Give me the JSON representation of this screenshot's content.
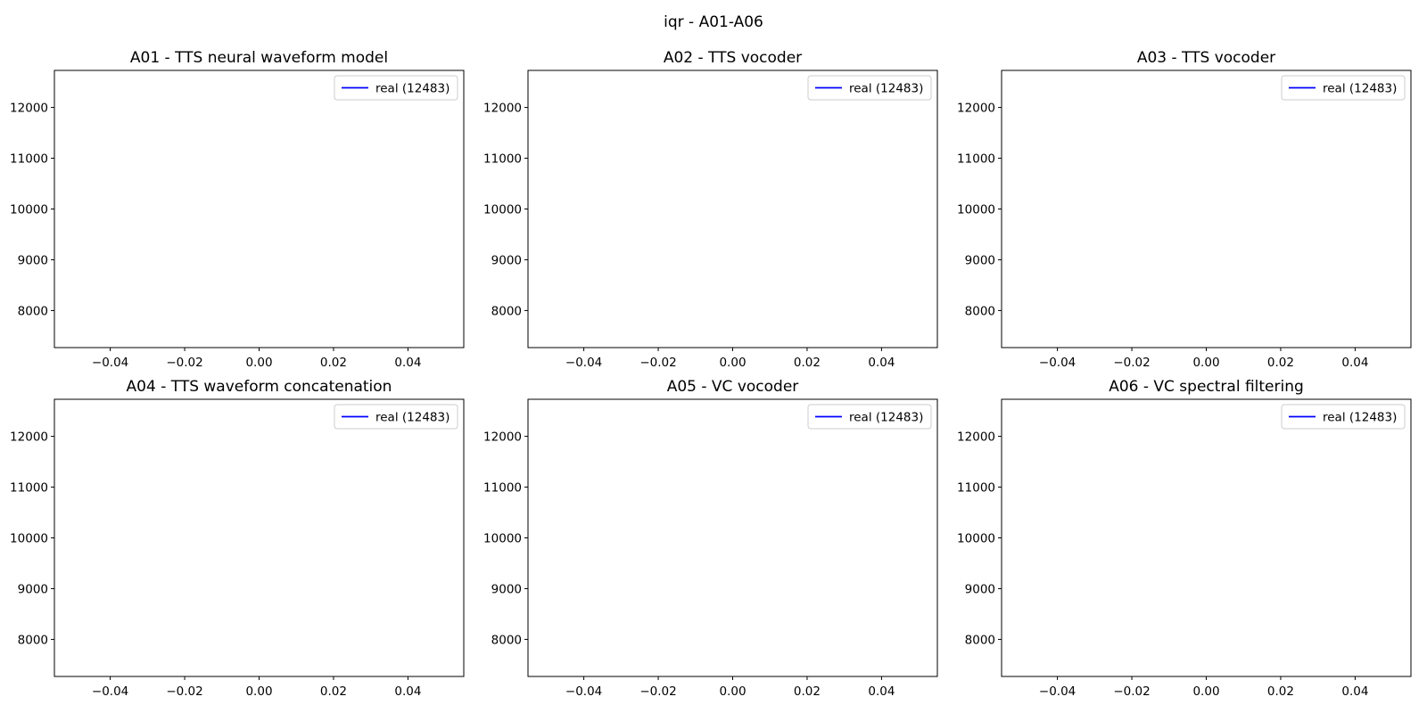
{
  "figure": {
    "title": "iqr - A01-A06"
  },
  "chart_data": [
    {
      "type": "line",
      "title": "A01 - TTS neural waveform model",
      "xlabel": "",
      "ylabel": "",
      "xlim": [
        -0.055,
        0.055
      ],
      "ylim": [
        7270,
        12730
      ],
      "xticks": [
        "−0.04",
        "−0.02",
        "0.00",
        "0.02",
        "0.04"
      ],
      "xtick_values": [
        -0.04,
        -0.02,
        0,
        0.02,
        0.04
      ],
      "yticks": [
        "8000",
        "9000",
        "10000",
        "11000",
        "12000"
      ],
      "ytick_values": [
        8000,
        9000,
        10000,
        11000,
        12000
      ],
      "grid": false,
      "legend_position": "upper right",
      "series": [
        {
          "name": "real (12483)",
          "color": "#0000ff",
          "x": [
            0
          ],
          "y": [
            12483
          ]
        }
      ]
    },
    {
      "type": "line",
      "title": "A02 - TTS vocoder",
      "xlabel": "",
      "ylabel": "",
      "xlim": [
        -0.055,
        0.055
      ],
      "ylim": [
        7270,
        12730
      ],
      "xticks": [
        "−0.04",
        "−0.02",
        "0.00",
        "0.02",
        "0.04"
      ],
      "xtick_values": [
        -0.04,
        -0.02,
        0,
        0.02,
        0.04
      ],
      "yticks": [
        "8000",
        "9000",
        "10000",
        "11000",
        "12000"
      ],
      "ytick_values": [
        8000,
        9000,
        10000,
        11000,
        12000
      ],
      "grid": false,
      "legend_position": "upper right",
      "series": [
        {
          "name": "real (12483)",
          "color": "#0000ff",
          "x": [
            0
          ],
          "y": [
            12483
          ]
        }
      ]
    },
    {
      "type": "line",
      "title": "A03 - TTS vocoder",
      "xlabel": "",
      "ylabel": "",
      "xlim": [
        -0.055,
        0.055
      ],
      "ylim": [
        7270,
        12730
      ],
      "xticks": [
        "−0.04",
        "−0.02",
        "0.00",
        "0.02",
        "0.04"
      ],
      "xtick_values": [
        -0.04,
        -0.02,
        0,
        0.02,
        0.04
      ],
      "yticks": [
        "8000",
        "9000",
        "10000",
        "11000",
        "12000"
      ],
      "ytick_values": [
        8000,
        9000,
        10000,
        11000,
        12000
      ],
      "grid": false,
      "legend_position": "upper right",
      "series": [
        {
          "name": "real (12483)",
          "color": "#0000ff",
          "x": [
            0
          ],
          "y": [
            12483
          ]
        }
      ]
    },
    {
      "type": "line",
      "title": "A04 - TTS waveform concatenation",
      "xlabel": "",
      "ylabel": "",
      "xlim": [
        -0.055,
        0.055
      ],
      "ylim": [
        7270,
        12730
      ],
      "xticks": [
        "−0.04",
        "−0.02",
        "0.00",
        "0.02",
        "0.04"
      ],
      "xtick_values": [
        -0.04,
        -0.02,
        0,
        0.02,
        0.04
      ],
      "yticks": [
        "8000",
        "9000",
        "10000",
        "11000",
        "12000"
      ],
      "ytick_values": [
        8000,
        9000,
        10000,
        11000,
        12000
      ],
      "grid": false,
      "legend_position": "upper right",
      "series": [
        {
          "name": "real (12483)",
          "color": "#0000ff",
          "x": [
            0
          ],
          "y": [
            12483
          ]
        }
      ]
    },
    {
      "type": "line",
      "title": "A05 - VC vocoder",
      "xlabel": "",
      "ylabel": "",
      "xlim": [
        -0.055,
        0.055
      ],
      "ylim": [
        7270,
        12730
      ],
      "xticks": [
        "−0.04",
        "−0.02",
        "0.00",
        "0.02",
        "0.04"
      ],
      "xtick_values": [
        -0.04,
        -0.02,
        0,
        0.02,
        0.04
      ],
      "yticks": [
        "8000",
        "9000",
        "10000",
        "11000",
        "12000"
      ],
      "ytick_values": [
        8000,
        9000,
        10000,
        11000,
        12000
      ],
      "grid": false,
      "legend_position": "upper right",
      "series": [
        {
          "name": "real (12483)",
          "color": "#0000ff",
          "x": [
            0
          ],
          "y": [
            12483
          ]
        }
      ]
    },
    {
      "type": "line",
      "title": "A06 - VC spectral filtering",
      "xlabel": "",
      "ylabel": "",
      "xlim": [
        -0.055,
        0.055
      ],
      "ylim": [
        7270,
        12730
      ],
      "xticks": [
        "−0.04",
        "−0.02",
        "0.00",
        "0.02",
        "0.04"
      ],
      "xtick_values": [
        -0.04,
        -0.02,
        0,
        0.02,
        0.04
      ],
      "yticks": [
        "8000",
        "9000",
        "10000",
        "11000",
        "12000"
      ],
      "ytick_values": [
        8000,
        9000,
        10000,
        11000,
        12000
      ],
      "grid": false,
      "legend_position": "upper right",
      "series": [
        {
          "name": "real (12483)",
          "color": "#0000ff",
          "x": [
            0
          ],
          "y": [
            12483
          ]
        }
      ]
    }
  ]
}
